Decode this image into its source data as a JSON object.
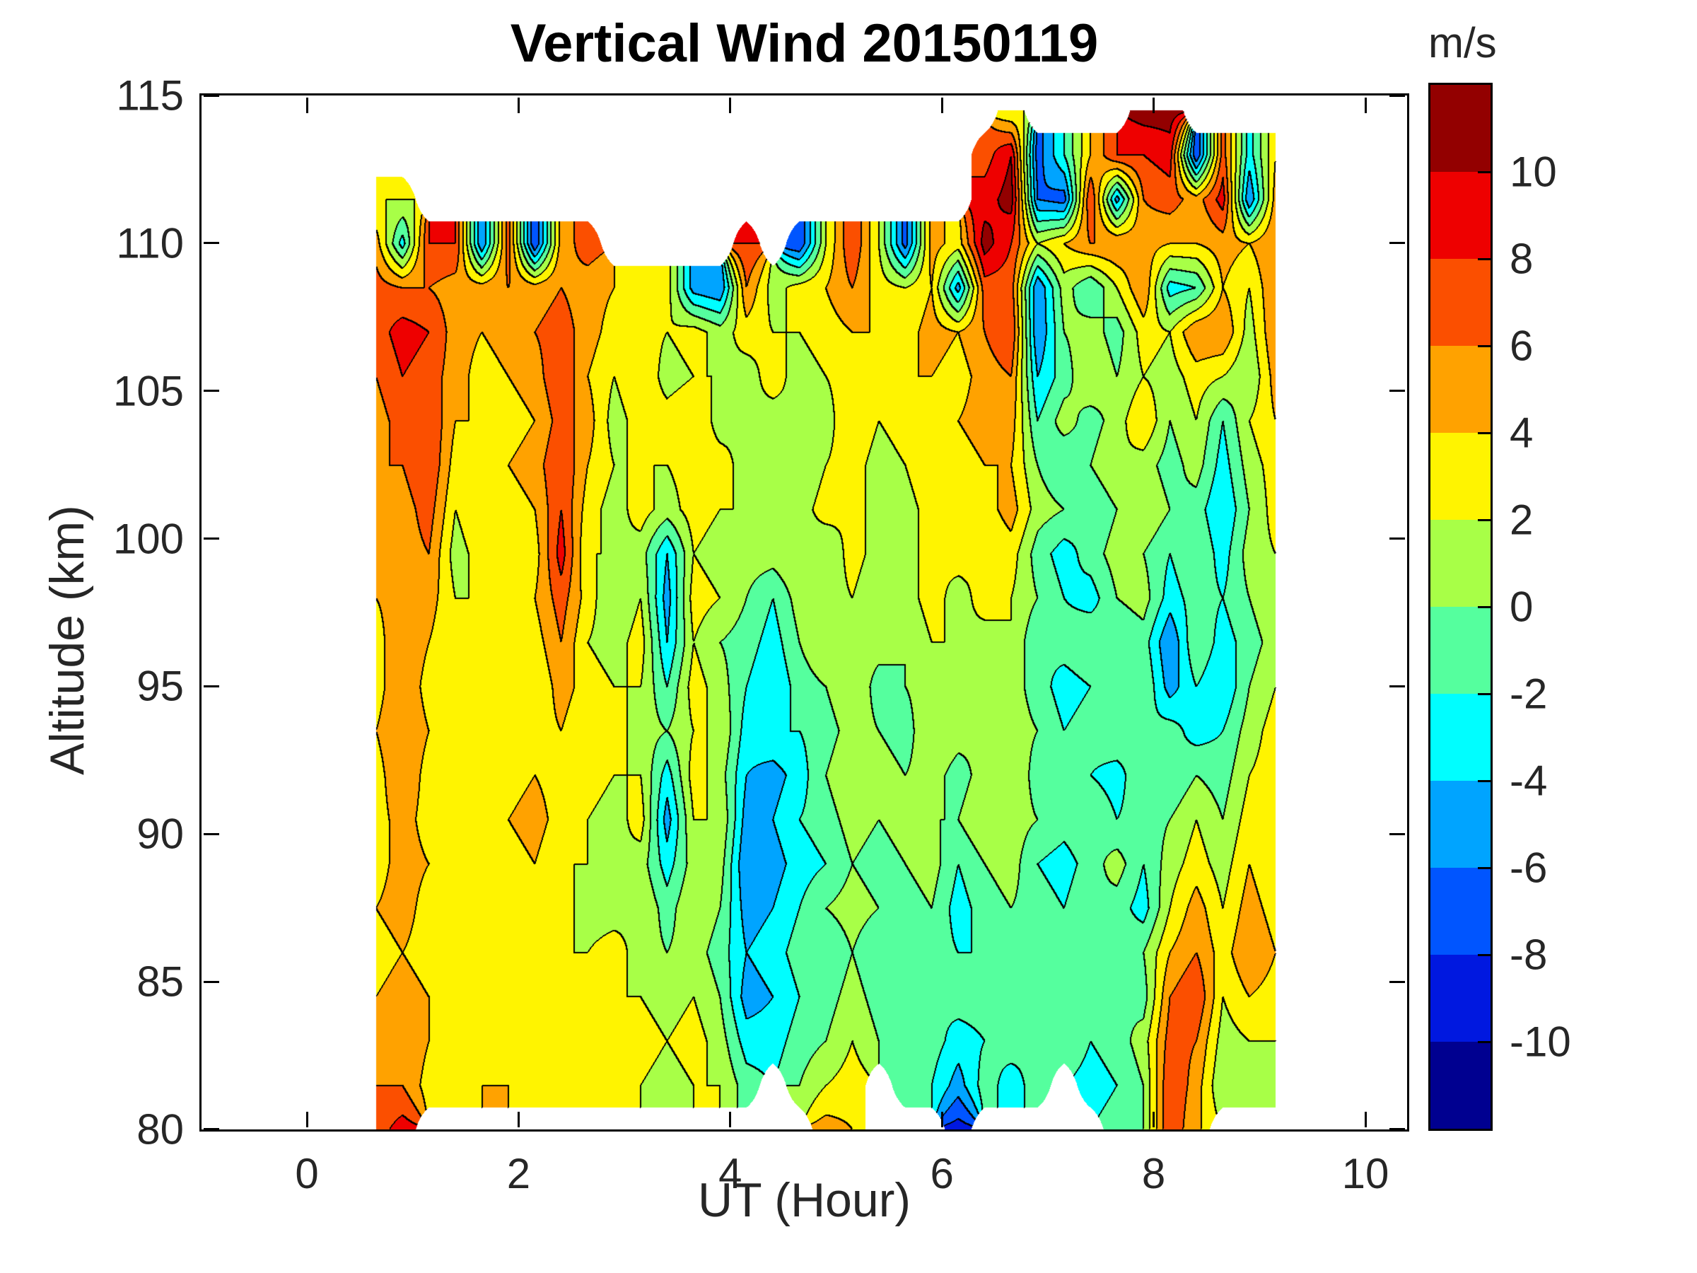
{
  "title": "Vertical Wind 20150119",
  "axes": {
    "xlabel": "UT (Hour)",
    "ylabel": "Altitude (km)",
    "x_tick_labels": [
      "0",
      "2",
      "4",
      "6",
      "8",
      "10"
    ],
    "x_tick_values": [
      0,
      2,
      4,
      6,
      8,
      10
    ],
    "y_tick_labels": [
      "115",
      "110",
      "105",
      "100",
      "95",
      "90",
      "85",
      "80"
    ],
    "y_tick_values": [
      115,
      110,
      105,
      100,
      95,
      90,
      85,
      80
    ],
    "xlim": [
      -1.0,
      10.4
    ],
    "ylim": [
      80,
      115
    ],
    "grid": false
  },
  "colorbar": {
    "unit": "m/s",
    "tick_labels": [
      "10",
      "8",
      "6",
      "4",
      "2",
      "0",
      "-2",
      "-4",
      "-6",
      "-8",
      "-10"
    ],
    "tick_values": [
      10,
      8,
      6,
      4,
      2,
      0,
      -2,
      -4,
      -6,
      -8,
      -10
    ]
  },
  "chart_data": {
    "type": "heatmap",
    "subtype": "filled-contour",
    "title": "Vertical Wind 20150119",
    "xlabel": "UT (Hour)",
    "ylabel": "Altitude (km)",
    "unit": "m/s",
    "legend_position": "right-colorbar",
    "contour_interval": 2,
    "levels": [
      -12,
      -10,
      -8,
      -6,
      -4,
      -2,
      0,
      2,
      4,
      6,
      8,
      10,
      12
    ],
    "band_colors": [
      "#000090",
      "#0018e0",
      "#0055ff",
      "#00a4ff",
      "#00feff",
      "#55ff9e",
      "#a8ff47",
      "#fff400",
      "#ffa200",
      "#fb4f00",
      "#ee0000",
      "#930000"
    ],
    "contour_line_color": "#000000",
    "x": [
      0.65,
      0.9,
      1.15,
      1.4,
      1.65,
      1.9,
      2.15,
      2.4,
      2.65,
      2.9,
      3.15,
      3.4,
      3.65,
      3.9,
      4.15,
      4.4,
      4.65,
      4.9,
      5.15,
      5.4,
      5.65,
      5.9,
      6.15,
      6.4,
      6.65,
      6.9,
      7.15,
      7.4,
      7.65,
      7.9,
      8.15,
      8.4,
      8.65,
      8.9,
      9.15
    ],
    "y": [
      114.5,
      113,
      111.5,
      110,
      108.5,
      107,
      105.5,
      104,
      102.5,
      101,
      99.5,
      98,
      96.5,
      95,
      93.5,
      92,
      90.5,
      89,
      87.5,
      86,
      84.5,
      83,
      81.5,
      80
    ],
    "values": [
      [
        null,
        null,
        null,
        null,
        null,
        null,
        null,
        null,
        null,
        null,
        null,
        null,
        null,
        null,
        null,
        null,
        null,
        null,
        null,
        null,
        null,
        null,
        null,
        null,
        2,
        null,
        null,
        null,
        null,
        11,
        11,
        null,
        null,
        null,
        null
      ],
      [
        null,
        null,
        null,
        null,
        null,
        null,
        null,
        null,
        null,
        null,
        null,
        null,
        null,
        null,
        null,
        null,
        null,
        null,
        null,
        null,
        null,
        null,
        null,
        7,
        10,
        -7,
        -2,
        4,
        8,
        8,
        9,
        -8,
        7,
        -3,
        4
      ],
      [
        2,
        2,
        null,
        null,
        null,
        null,
        null,
        null,
        null,
        null,
        null,
        null,
        null,
        null,
        null,
        null,
        null,
        null,
        null,
        null,
        null,
        null,
        null,
        9,
        11,
        -6,
        -7,
        8,
        -5,
        6,
        7,
        5,
        9,
        -6,
        5
      ],
      [
        5,
        -3,
        8,
        8,
        -6,
        7,
        -8,
        5,
        7,
        null,
        null,
        null,
        null,
        null,
        8,
        null,
        -8,
        2,
        8,
        2,
        -7,
        5,
        3,
        11,
        8,
        2,
        4,
        6,
        6,
        5,
        4,
        4,
        5,
        4,
        6
      ],
      [
        7,
        6,
        6,
        5,
        5,
        6,
        5,
        6,
        5,
        4,
        2,
        3,
        -5,
        -6,
        6,
        1,
        3,
        4,
        6,
        3,
        2,
        4,
        -5,
        7,
        7,
        -6,
        1,
        -2,
        2,
        6,
        -3,
        -2,
        4,
        2,
        6
      ],
      [
        7,
        9,
        8,
        5,
        4,
        5,
        6,
        7,
        5,
        3,
        3,
        2,
        3,
        1,
        3,
        2,
        2,
        3,
        4,
        4,
        3,
        5,
        4,
        6,
        8,
        -6,
        0,
        1,
        -1,
        3,
        2,
        6,
        6,
        1,
        6
      ],
      [
        6,
        8,
        7,
        5,
        3,
        4,
        5,
        8,
        4,
        2,
        4,
        1,
        2,
        2,
        1,
        3,
        1,
        2,
        3,
        3,
        4,
        4,
        3,
        5,
        6,
        -4,
        -1,
        2,
        0,
        2,
        1,
        3,
        2,
        0,
        5
      ],
      [
        5,
        7,
        8,
        4,
        4,
        3,
        4,
        7,
        5,
        1,
        3,
        3,
        4,
        1,
        2,
        1,
        2,
        1,
        4,
        2,
        3,
        3,
        4,
        5,
        5,
        -2,
        1,
        -1,
        1,
        4,
        0,
        2,
        -2,
        2,
        4
      ],
      [
        6,
        6,
        8,
        3,
        3,
        4,
        5,
        8,
        4,
        2,
        2,
        2,
        3,
        3,
        1,
        2,
        0,
        2,
        3,
        1,
        2,
        4,
        3,
        4,
        4,
        0,
        -2,
        0,
        2,
        1,
        -1,
        1,
        -3,
        1,
        3
      ],
      [
        5,
        5,
        7,
        2,
        4,
        3,
        4,
        8,
        3,
        1,
        3,
        1,
        3,
        2,
        2,
        0,
        1,
        3,
        2,
        2,
        1,
        3,
        2,
        3,
        5,
        1,
        0,
        -2,
        0,
        2,
        0,
        -1,
        -4,
        0,
        3
      ],
      [
        4,
        5,
        6,
        1,
        3,
        4,
        3,
        9,
        2,
        2,
        1,
        -4,
        2,
        1,
        1,
        1,
        2,
        0,
        3,
        1,
        2,
        2,
        3,
        2,
        3,
        -1,
        -3,
        -1,
        1,
        0,
        -2,
        0,
        -3,
        1,
        2
      ],
      [
        4,
        5,
        5,
        2,
        2,
        3,
        4,
        7,
        3,
        0,
        2,
        -5,
        3,
        2,
        0,
        -2,
        1,
        1,
        2,
        0,
        1,
        3,
        1,
        3,
        2,
        0,
        -2,
        -3,
        0,
        1,
        -3,
        -1,
        -2,
        0,
        2
      ],
      [
        3,
        6,
        4,
        2,
        3,
        2,
        3,
        6,
        2,
        1,
        3,
        -4,
        2,
        0,
        -1,
        -3,
        0,
        2,
        1,
        1,
        0,
        2,
        2,
        1,
        2,
        -2,
        -1,
        0,
        -2,
        -1,
        -6,
        0,
        -3,
        -1,
        1
      ],
      [
        3,
        6,
        3,
        3,
        2,
        3,
        2,
        5,
        3,
        2,
        2,
        -2,
        3,
        1,
        -2,
        -4,
        -1,
        0,
        2,
        -1,
        0,
        1,
        0,
        2,
        1,
        -1,
        -3,
        -2,
        -1,
        0,
        -5,
        -2,
        -4,
        0,
        2
      ],
      [
        4,
        6,
        4,
        3,
        3,
        4,
        3,
        4,
        2,
        3,
        1,
        0,
        2,
        2,
        -3,
        -2,
        -2,
        -1,
        1,
        0,
        -1,
        2,
        1,
        0,
        1,
        0,
        -2,
        -1,
        0,
        -2,
        -1,
        -3,
        -2,
        1,
        3
      ],
      [
        3,
        6,
        3,
        2,
        3,
        3,
        4,
        3,
        3,
        2,
        2,
        -3,
        3,
        1,
        -4,
        -5,
        -3,
        0,
        2,
        1,
        0,
        1,
        -1,
        1,
        2,
        -1,
        0,
        -2,
        -3,
        0,
        -2,
        0,
        -1,
        2,
        3
      ],
      [
        3,
        5,
        3,
        3,
        2,
        4,
        5,
        3,
        2,
        1,
        3,
        -5,
        2,
        2,
        -5,
        -4,
        -2,
        -1,
        1,
        0,
        1,
        0,
        0,
        2,
        1,
        0,
        -1,
        0,
        -2,
        -1,
        0,
        2,
        0,
        3,
        2
      ],
      [
        3,
        5,
        4,
        3,
        3,
        3,
        4,
        2,
        2,
        2,
        1,
        -3,
        1,
        1,
        -6,
        -5,
        -3,
        -2,
        0,
        -1,
        0,
        1,
        -2,
        0,
        1,
        -2,
        -3,
        -1,
        1,
        -2,
        1,
        3,
        1,
        4,
        2
      ],
      [
        4,
        5,
        3,
        4,
        3,
        4,
        3,
        3,
        1,
        1,
        2,
        -1,
        2,
        0,
        -5,
        -4,
        -2,
        0,
        1,
        0,
        -1,
        0,
        -3,
        -1,
        0,
        -1,
        -2,
        0,
        -1,
        -3,
        2,
        5,
        2,
        5,
        3
      ],
      [
        3,
        4,
        3,
        3,
        2,
        3,
        4,
        2,
        2,
        3,
        1,
        0,
        1,
        -1,
        -4,
        -3,
        -1,
        -2,
        0,
        -2,
        0,
        -1,
        -2,
        -2,
        -1,
        0,
        -1,
        -2,
        -1,
        0,
        4,
        6,
        3,
        6,
        4
      ],
      [
        4,
        5,
        4,
        3,
        3,
        4,
        3,
        3,
        3,
        2,
        2,
        1,
        2,
        0,
        -5,
        -4,
        -2,
        -1,
        1,
        -1,
        -1,
        -2,
        -1,
        -1,
        -2,
        -1,
        -2,
        -1,
        0,
        -1,
        6,
        8,
        2,
        4,
        3
      ],
      [
        5,
        6,
        4,
        4,
        3,
        3,
        4,
        4,
        2,
        3,
        3,
        2,
        3,
        1,
        -3,
        -3,
        -1,
        0,
        2,
        0,
        -2,
        -1,
        -3,
        -2,
        -1,
        -2,
        0,
        -2,
        -1,
        1,
        7,
        6,
        1,
        2,
        2
      ],
      [
        6,
        6,
        3,
        3,
        4,
        4,
        3,
        3,
        3,
        4,
        2,
        1,
        2,
        2,
        -1,
        null,
        0,
        2,
        3,
        null,
        -1,
        -2,
        -5,
        -1,
        -3,
        -1,
        null,
        -3,
        -2,
        0,
        8,
        5,
        0,
        1,
        2
      ],
      [
        7,
        9,
        null,
        null,
        null,
        null,
        null,
        null,
        null,
        null,
        null,
        null,
        null,
        null,
        null,
        null,
        null,
        5,
        4,
        null,
        null,
        null,
        -9,
        null,
        null,
        null,
        null,
        null,
        -1,
        0,
        8,
        4,
        null,
        null,
        null
      ]
    ]
  }
}
